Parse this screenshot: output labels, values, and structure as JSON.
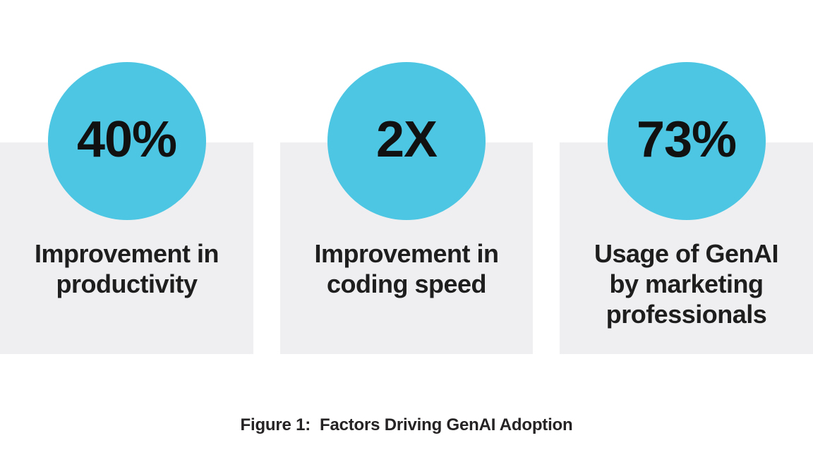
{
  "figure": {
    "caption": "Figure 1:  Factors Driving GenAI Adoption"
  },
  "stats": [
    {
      "value": "40%",
      "label": "Improvement in\nproductivity"
    },
    {
      "value": "2X",
      "label": "Improvement in\ncoding speed"
    },
    {
      "value": "73%",
      "label": "Usage of GenAI\nby marketing\nprofessionals"
    }
  ],
  "colors": {
    "accent": "#4CC6E2",
    "card-bg": "#EFEFF1",
    "text": "#1E1E1E",
    "value-text": "#111111",
    "caption-text": "#262324"
  },
  "chart_data": {
    "type": "table",
    "title": "Figure 1: Factors Driving GenAI Adoption",
    "categories": [
      "Improvement in productivity",
      "Improvement in coding speed",
      "Usage of GenAI by marketing professionals"
    ],
    "values": [
      "40%",
      "2X",
      "73%"
    ]
  }
}
